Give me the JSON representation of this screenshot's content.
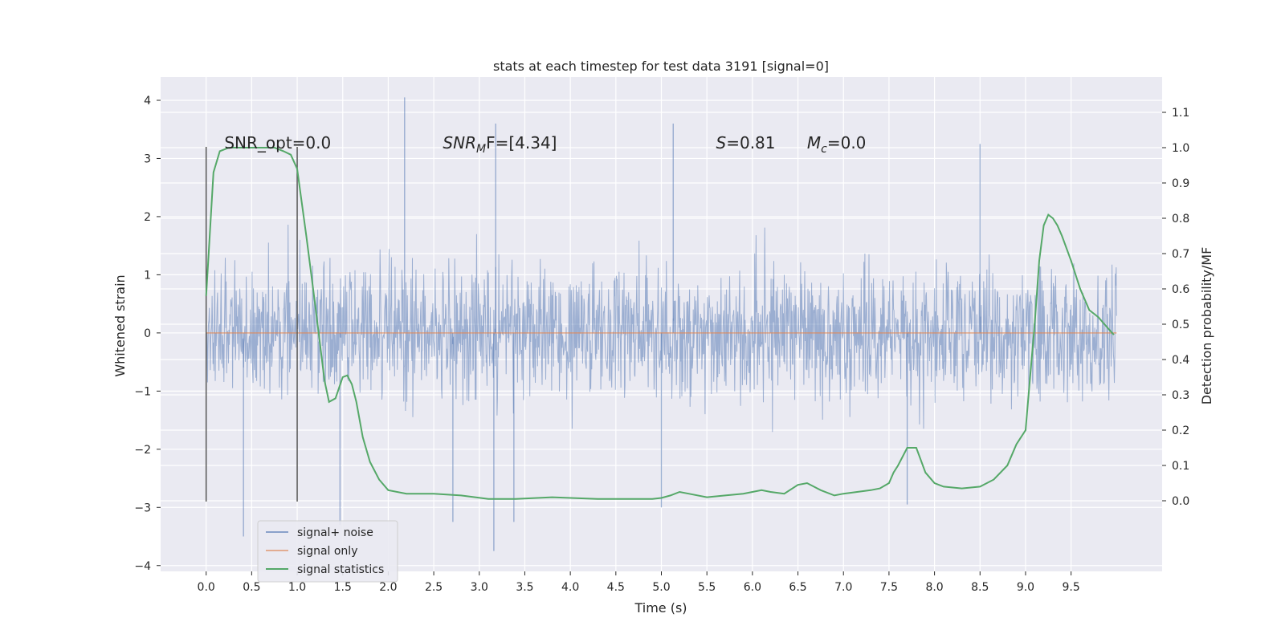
{
  "chart_data": {
    "type": "line",
    "title": "stats at each timestep for test data 3191 [signal=0]",
    "xlabel": "Time (s)",
    "ylabel": "Whitened strain",
    "ylabel_right": "Detection probability/MF",
    "xlim": [
      -0.5,
      10.5
    ],
    "ylim": [
      -4.1,
      4.4
    ],
    "ylim_right": [
      -0.2,
      1.2
    ],
    "x_ticks": [
      "0.0",
      "0.5",
      "1.0",
      "1.5",
      "2.0",
      "2.5",
      "3.0",
      "3.5",
      "4.0",
      "4.5",
      "5.0",
      "5.5",
      "6.0",
      "6.5",
      "7.0",
      "7.5",
      "8.0",
      "8.5",
      "9.0",
      "9.5"
    ],
    "y_ticks": [
      "4",
      "3",
      "2",
      "1",
      "0",
      "−1",
      "−2",
      "−3",
      "−4"
    ],
    "y_ticks_right": [
      "1.1",
      "1.0",
      "0.9",
      "0.8",
      "0.7",
      "0.6",
      "0.5",
      "0.4",
      "0.3",
      "0.2",
      "0.1",
      "0.0"
    ],
    "grid": true,
    "legend_position": "bottom-left",
    "series": [
      {
        "name": "signal+ noise",
        "color": "#4C72B0",
        "description_x_range": [
          0.0,
          10.0
        ],
        "typical_range": [
          -1.5,
          1.5
        ],
        "peaks": [
          {
            "x": 2.18,
            "y": 4.05
          },
          {
            "x": 5.13,
            "y": 3.6
          },
          {
            "x": 3.18,
            "y": 3.6
          },
          {
            "x": 8.5,
            "y": 3.25
          },
          {
            "x": 3.16,
            "y": -3.75
          },
          {
            "x": 0.41,
            "y": -3.5
          },
          {
            "x": 1.47,
            "y": -3.3
          },
          {
            "x": 3.38,
            "y": -3.25
          },
          {
            "x": 2.71,
            "y": -3.25
          },
          {
            "x": 5.0,
            "y": -3.0
          },
          {
            "x": 7.7,
            "y": -2.95
          }
        ]
      },
      {
        "name": "signal only",
        "color": "#DD8452",
        "x": [
          0.0,
          10.0
        ],
        "y": [
          0.0,
          0.0
        ]
      },
      {
        "name": "signal statistics",
        "color": "#55A868",
        "axis": "right",
        "x": [
          0.0,
          0.08,
          0.15,
          0.25,
          0.5,
          0.75,
          0.85,
          0.93,
          1.0,
          1.1,
          1.2,
          1.3,
          1.35,
          1.42,
          1.5,
          1.55,
          1.6,
          1.65,
          1.72,
          1.8,
          1.9,
          2.0,
          2.2,
          2.5,
          2.8,
          3.1,
          3.4,
          3.8,
          4.3,
          4.7,
          4.9,
          5.0,
          5.1,
          5.2,
          5.3,
          5.5,
          5.7,
          5.9,
          6.0,
          6.1,
          6.2,
          6.35,
          6.5,
          6.6,
          6.75,
          6.9,
          7.0,
          7.15,
          7.3,
          7.4,
          7.5,
          7.55,
          7.6,
          7.7,
          7.8,
          7.9,
          8.0,
          8.1,
          8.3,
          8.5,
          8.65,
          8.8,
          8.9,
          9.0,
          9.05,
          9.1,
          9.15,
          9.2,
          9.25,
          9.3,
          9.35,
          9.4,
          9.5,
          9.6,
          9.7,
          9.8,
          9.9,
          9.97
        ],
        "y": [
          0.58,
          0.93,
          0.99,
          1.0,
          1.0,
          1.0,
          0.99,
          0.98,
          0.94,
          0.75,
          0.55,
          0.34,
          0.28,
          0.29,
          0.35,
          0.355,
          0.33,
          0.28,
          0.18,
          0.11,
          0.06,
          0.03,
          0.02,
          0.02,
          0.015,
          0.005,
          0.005,
          0.01,
          0.005,
          0.005,
          0.005,
          0.008,
          0.015,
          0.025,
          0.02,
          0.01,
          0.015,
          0.02,
          0.025,
          0.03,
          0.025,
          0.02,
          0.045,
          0.05,
          0.03,
          0.015,
          0.02,
          0.025,
          0.03,
          0.035,
          0.05,
          0.08,
          0.1,
          0.15,
          0.15,
          0.08,
          0.05,
          0.04,
          0.035,
          0.04,
          0.06,
          0.1,
          0.16,
          0.2,
          0.35,
          0.5,
          0.68,
          0.78,
          0.81,
          0.8,
          0.78,
          0.75,
          0.68,
          0.6,
          0.54,
          0.52,
          0.49,
          0.47
        ]
      }
    ],
    "annotations": [
      {
        "text": "SNR_opt=0.0",
        "x": 0.2
      },
      {
        "text": "SNR",
        "sub": "M",
        "suffix": "F=[4.34]",
        "x": 2.6
      },
      {
        "text": "S",
        "suffix": "=0.81",
        "x": 5.6
      },
      {
        "text": "M",
        "sub": "c",
        "suffix": "=0.0",
        "x": 6.6
      }
    ],
    "vlines": [
      {
        "x": 0.0,
        "y_range": [
          -2.9,
          3.2
        ]
      },
      {
        "x": 1.0,
        "y_range": [
          -2.9,
          3.2
        ]
      }
    ]
  }
}
